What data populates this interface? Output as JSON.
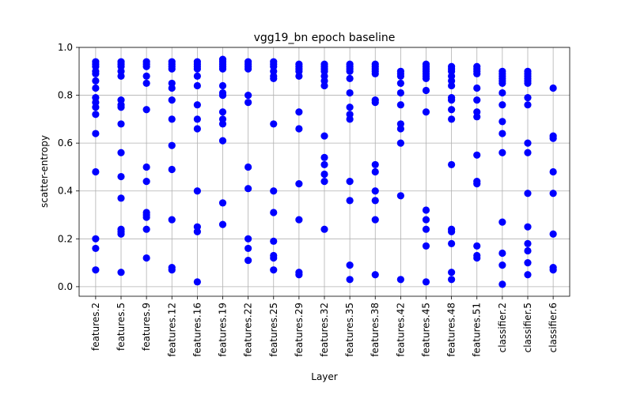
{
  "chart_data": {
    "type": "scatter",
    "title": "vgg19_bn epoch baseline",
    "xlabel": "Layer",
    "ylabel": "scatter-entropy",
    "ylim": [
      -0.04,
      1.0
    ],
    "yticks": [
      0.0,
      0.2,
      0.4,
      0.6,
      0.8,
      1.0
    ],
    "grid": true,
    "marker_color": "#0000ff",
    "categories": [
      "features.2",
      "features.5",
      "features.9",
      "features.12",
      "features.16",
      "features.19",
      "features.22",
      "features.25",
      "features.29",
      "features.32",
      "features.35",
      "features.38",
      "features.42",
      "features.45",
      "features.48",
      "features.51",
      "classifier.2",
      "classifier.5",
      "classifier.6"
    ],
    "series": [
      {
        "points": [
          {
            "layer": "features.2",
            "values": [
              0.94,
              0.93,
              0.92,
              0.9,
              0.89,
              0.86,
              0.83,
              0.79,
              0.77,
              0.75,
              0.72,
              0.64,
              0.48,
              0.2,
              0.16,
              0.07
            ]
          },
          {
            "layer": "features.5",
            "values": [
              0.94,
              0.93,
              0.92,
              0.9,
              0.88,
              0.78,
              0.76,
              0.75,
              0.68,
              0.56,
              0.46,
              0.37,
              0.24,
              0.23,
              0.22,
              0.06
            ]
          },
          {
            "layer": "features.9",
            "values": [
              0.94,
              0.93,
              0.92,
              0.88,
              0.85,
              0.74,
              0.5,
              0.44,
              0.31,
              0.3,
              0.29,
              0.24,
              0.12
            ]
          },
          {
            "layer": "features.12",
            "values": [
              0.94,
              0.93,
              0.92,
              0.91,
              0.85,
              0.83,
              0.78,
              0.7,
              0.59,
              0.49,
              0.28,
              0.08,
              0.07
            ]
          },
          {
            "layer": "features.16",
            "values": [
              0.94,
              0.93,
              0.92,
              0.91,
              0.88,
              0.84,
              0.76,
              0.7,
              0.66,
              0.4,
              0.25,
              0.23,
              0.02
            ]
          },
          {
            "layer": "features.19",
            "values": [
              0.95,
              0.94,
              0.93,
              0.92,
              0.91,
              0.84,
              0.81,
              0.8,
              0.73,
              0.7,
              0.68,
              0.61,
              0.35,
              0.26
            ]
          },
          {
            "layer": "features.22",
            "values": [
              0.94,
              0.93,
              0.92,
              0.91,
              0.8,
              0.77,
              0.5,
              0.41,
              0.2,
              0.16,
              0.11
            ]
          },
          {
            "layer": "features.25",
            "values": [
              0.94,
              0.93,
              0.92,
              0.9,
              0.88,
              0.87,
              0.68,
              0.4,
              0.31,
              0.19,
              0.13,
              0.12,
              0.07
            ]
          },
          {
            "layer": "features.29",
            "values": [
              0.93,
              0.92,
              0.91,
              0.9,
              0.88,
              0.73,
              0.66,
              0.43,
              0.28,
              0.06,
              0.05
            ]
          },
          {
            "layer": "features.32",
            "values": [
              0.93,
              0.92,
              0.91,
              0.9,
              0.88,
              0.86,
              0.84,
              0.63,
              0.54,
              0.51,
              0.47,
              0.44,
              0.24
            ]
          },
          {
            "layer": "features.35",
            "values": [
              0.93,
              0.92,
              0.91,
              0.9,
              0.87,
              0.81,
              0.75,
              0.72,
              0.7,
              0.44,
              0.36,
              0.09,
              0.03
            ]
          },
          {
            "layer": "features.38",
            "values": [
              0.93,
              0.92,
              0.91,
              0.9,
              0.89,
              0.78,
              0.77,
              0.51,
              0.48,
              0.4,
              0.36,
              0.28,
              0.05
            ]
          },
          {
            "layer": "features.42",
            "values": [
              0.9,
              0.89,
              0.88,
              0.85,
              0.81,
              0.76,
              0.68,
              0.66,
              0.6,
              0.38,
              0.03
            ]
          },
          {
            "layer": "features.45",
            "values": [
              0.93,
              0.92,
              0.91,
              0.9,
              0.89,
              0.88,
              0.87,
              0.82,
              0.73,
              0.32,
              0.28,
              0.24,
              0.17,
              0.02
            ]
          },
          {
            "layer": "features.48",
            "values": [
              0.92,
              0.91,
              0.9,
              0.88,
              0.86,
              0.84,
              0.79,
              0.78,
              0.74,
              0.7,
              0.51,
              0.24,
              0.23,
              0.18,
              0.06,
              0.03
            ]
          },
          {
            "layer": "features.51",
            "values": [
              0.92,
              0.91,
              0.9,
              0.89,
              0.83,
              0.78,
              0.73,
              0.71,
              0.55,
              0.44,
              0.43,
              0.17,
              0.13,
              0.12
            ]
          },
          {
            "layer": "classifier.2",
            "values": [
              0.9,
              0.89,
              0.88,
              0.87,
              0.86,
              0.85,
              0.81,
              0.76,
              0.69,
              0.64,
              0.56,
              0.27,
              0.14,
              0.09,
              0.01
            ]
          },
          {
            "layer": "classifier.5",
            "values": [
              0.9,
              0.89,
              0.88,
              0.87,
              0.86,
              0.85,
              0.79,
              0.76,
              0.6,
              0.56,
              0.39,
              0.25,
              0.18,
              0.15,
              0.1,
              0.05
            ]
          },
          {
            "layer": "classifier.6",
            "values": [
              0.83,
              0.63,
              0.62,
              0.48,
              0.39,
              0.22,
              0.08,
              0.07
            ]
          }
        ]
      }
    ]
  }
}
